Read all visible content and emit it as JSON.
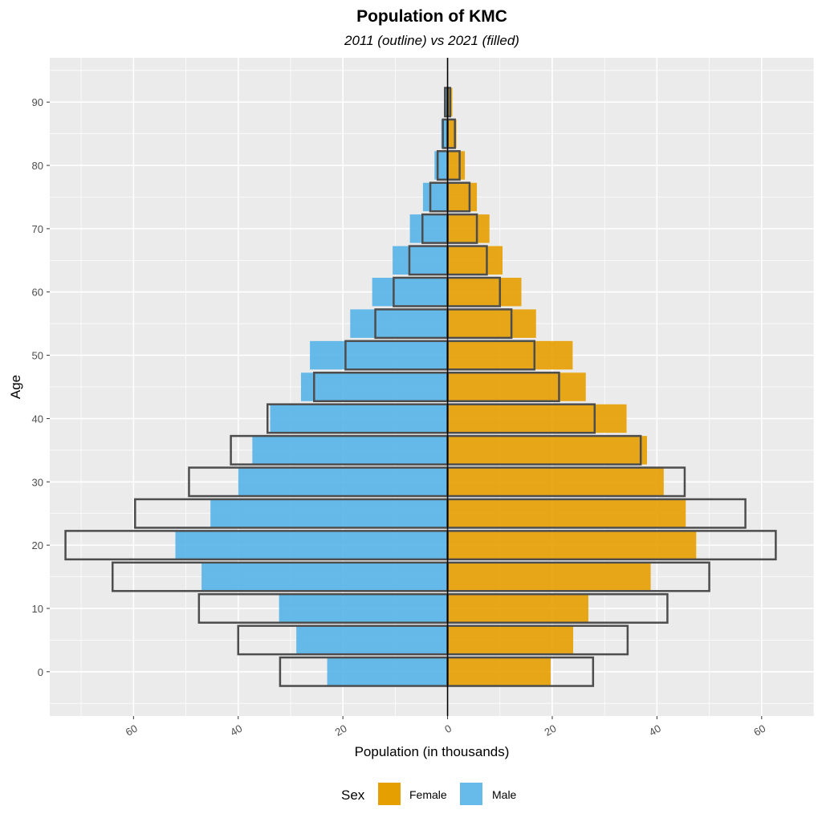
{
  "chart_data": {
    "type": "bar",
    "orientation": "horizontal",
    "title": "Population of KMC",
    "subtitle": "2011 (outline) vs 2021 (filled)",
    "xlabel": "Population (in thousands)",
    "ylabel": "Age",
    "xlim": [
      -76,
      70
    ],
    "ylim": [
      -7,
      97
    ],
    "x_ticks": [
      -60,
      -40,
      -20,
      0,
      20,
      40,
      60
    ],
    "x_tick_labels": [
      "60",
      "40",
      "20",
      "0",
      "20",
      "40",
      "60"
    ],
    "y_ticks": [
      0,
      10,
      20,
      30,
      40,
      50,
      60,
      70,
      80,
      90
    ],
    "y_tick_labels": [
      "0",
      "10",
      "20",
      "30",
      "40",
      "50",
      "60",
      "70",
      "80",
      "90"
    ],
    "grid": true,
    "legend": {
      "title": "Sex",
      "placement": "bottom",
      "entries": [
        {
          "label": "Female",
          "color": "#E69F00"
        },
        {
          "label": "Male",
          "color": "#56B4E9"
        }
      ]
    },
    "ages": [
      0,
      5,
      10,
      15,
      20,
      25,
      30,
      35,
      40,
      45,
      50,
      55,
      60,
      65,
      70,
      75,
      80,
      85,
      90
    ],
    "series": [
      {
        "name": "Male 2021 (filled)",
        "color": "#56B4E9",
        "values": [
          23,
          28.9,
          32.2,
          47,
          52,
          45.3,
          40,
          37.3,
          33.9,
          28,
          26.3,
          18.6,
          14.4,
          10.5,
          7.2,
          4.7,
          2.5,
          1.2,
          0.6
        ]
      },
      {
        "name": "Female 2021 (filled)",
        "color": "#E69F00",
        "values": [
          19.7,
          24,
          26.9,
          38.8,
          47.5,
          45.5,
          41.3,
          38.1,
          34.2,
          26.4,
          23.9,
          16.9,
          14.1,
          10.5,
          8,
          5.6,
          3.3,
          1.7,
          0.9
        ]
      },
      {
        "name": "Male 2011 (outline)",
        "values": [
          32,
          40,
          47.5,
          64,
          73,
          59.7,
          49.4,
          41.4,
          34.4,
          25.5,
          19.5,
          13.8,
          10.3,
          7.3,
          4.8,
          3.3,
          1.9,
          0.9,
          0.5
        ]
      },
      {
        "name": "Female 2011 (outline)",
        "values": [
          27.8,
          34.4,
          42,
          50,
          62.7,
          56.9,
          45.3,
          36.9,
          28.1,
          21.3,
          16.6,
          12.2,
          10,
          7.5,
          5.6,
          4.2,
          2.3,
          1.4,
          0.5
        ]
      }
    ]
  }
}
